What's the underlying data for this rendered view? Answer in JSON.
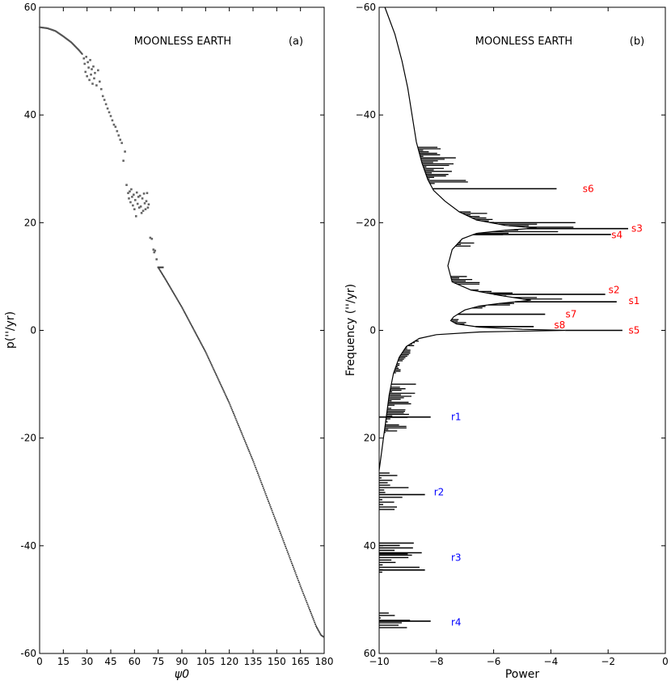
{
  "chart_data": [
    {
      "type": "scatter",
      "panel": "(a)",
      "title": "MOONLESS EARTH",
      "xlabel": "ψ0",
      "ylabel": "p(''/yr)",
      "xlim": [
        0,
        180
      ],
      "ylim": [
        -60,
        60
      ],
      "xticks": [
        0,
        15,
        30,
        45,
        60,
        75,
        90,
        105,
        120,
        135,
        150,
        165,
        180
      ],
      "yticks": [
        -60,
        -40,
        -20,
        0,
        20,
        40,
        60
      ],
      "regular_curve": [
        [
          0,
          56.3
        ],
        [
          5,
          56.1
        ],
        [
          10,
          55.6
        ],
        [
          15,
          54.6
        ],
        [
          20,
          53.5
        ],
        [
          25,
          52.0
        ],
        [
          27,
          51.3
        ],
        [
          75,
          11.7
        ],
        [
          80,
          9.3
        ],
        [
          90,
          4.3
        ],
        [
          105,
          -4.0
        ],
        [
          120,
          -13.5
        ],
        [
          135,
          -24.2
        ],
        [
          150,
          -35.8
        ],
        [
          165,
          -47.5
        ],
        [
          175,
          -55.0
        ],
        [
          178,
          -56.6
        ],
        [
          180,
          -57.0
        ]
      ],
      "chaotic_points": [
        [
          28,
          50.5
        ],
        [
          28.5,
          49.5
        ],
        [
          29,
          48.0
        ],
        [
          29.5,
          50.8
        ],
        [
          30,
          47.2
        ],
        [
          30.5,
          49.8
        ],
        [
          31,
          48.8
        ],
        [
          31.5,
          46.5
        ],
        [
          32,
          50.2
        ],
        [
          32.5,
          47.5
        ],
        [
          33,
          48.5
        ],
        [
          33.5,
          45.8
        ],
        [
          34,
          49.0
        ],
        [
          34.5,
          46.8
        ],
        [
          35,
          47.8
        ],
        [
          36,
          45.5
        ],
        [
          37,
          48.3
        ],
        [
          38,
          46.2
        ],
        [
          39,
          44.8
        ],
        [
          40,
          43.5
        ],
        [
          41,
          42.8
        ],
        [
          42,
          42.0
        ],
        [
          43,
          41.2
        ],
        [
          44,
          40.5
        ],
        [
          45,
          39.8
        ],
        [
          46,
          39.0
        ],
        [
          47,
          38.2
        ],
        [
          48,
          37.8
        ],
        [
          49,
          37.0
        ],
        [
          50,
          36.2
        ],
        [
          51,
          35.4
        ],
        [
          52,
          34.8
        ],
        [
          53,
          31.5
        ],
        [
          54,
          33.2
        ],
        [
          55,
          27.0
        ],
        [
          56,
          25.5
        ],
        [
          56.5,
          24.5
        ],
        [
          57,
          25.8
        ],
        [
          57.5,
          23.8
        ],
        [
          58,
          26.2
        ],
        [
          58.5,
          24.8
        ],
        [
          59,
          23.2
        ],
        [
          59.5,
          25.2
        ],
        [
          60,
          22.5
        ],
        [
          60.5,
          24.2
        ],
        [
          61,
          21.2
        ],
        [
          61.5,
          25.6
        ],
        [
          62,
          23.5
        ],
        [
          62.5,
          24.8
        ],
        [
          63,
          22.8
        ],
        [
          63.5,
          25.0
        ],
        [
          64,
          23.0
        ],
        [
          64.5,
          21.8
        ],
        [
          65,
          24.5
        ],
        [
          65.5,
          22.2
        ],
        [
          66,
          25.4
        ],
        [
          66.5,
          23.6
        ],
        [
          67,
          22.5
        ],
        [
          67.5,
          24.0
        ],
        [
          68,
          25.5
        ],
        [
          68.5,
          22.8
        ],
        [
          69,
          23.4
        ],
        [
          70,
          17.2
        ],
        [
          71,
          17.0
        ],
        [
          72,
          15.0
        ],
        [
          72.5,
          14.5
        ],
        [
          73,
          14.8
        ],
        [
          74,
          13.2
        ]
      ]
    },
    {
      "type": "line",
      "panel": "(b)",
      "title": "MOONLESS EARTH",
      "xlabel": "Power",
      "ylabel": "Frequency (''/yr)",
      "xlim": [
        -10,
        0
      ],
      "ylim": [
        60,
        -60
      ],
      "xticks": [
        -10,
        -8,
        -6,
        -4,
        -2,
        0
      ],
      "yticks": [
        -60,
        -40,
        -20,
        0,
        20,
        40,
        60
      ],
      "envelope": [
        [
          -60,
          -9.8
        ],
        [
          -55,
          -9.45
        ],
        [
          -50,
          -9.2
        ],
        [
          -45,
          -9.0
        ],
        [
          -40,
          -8.85
        ],
        [
          -35,
          -8.7
        ],
        [
          -31,
          -8.5
        ],
        [
          -28,
          -8.3
        ],
        [
          -26,
          -8.1
        ],
        [
          -24,
          -7.7
        ],
        [
          -22,
          -7.2
        ],
        [
          -20.5,
          -6.6
        ],
        [
          -19.5,
          -5.6
        ],
        [
          -19.0,
          -4.5
        ],
        [
          -18.6,
          -5.6
        ],
        [
          -18.0,
          -6.6
        ],
        [
          -17.0,
          -7.1
        ],
        [
          -15.0,
          -7.45
        ],
        [
          -12.0,
          -7.6
        ],
        [
          -9.0,
          -7.45
        ],
        [
          -7.5,
          -6.8
        ],
        [
          -6.5,
          -5.8
        ],
        [
          -5.6,
          -4.7
        ],
        [
          -5.0,
          -5.8
        ],
        [
          -4.5,
          -6.5
        ],
        [
          -3.8,
          -7.0
        ],
        [
          -3.0,
          -7.25
        ],
        [
          -2.5,
          -7.4
        ],
        [
          -1.8,
          -7.5
        ],
        [
          -1.2,
          -7.3
        ],
        [
          -0.6,
          -6.5
        ],
        [
          -0.2,
          -5.0
        ],
        [
          0.0,
          -3.5
        ],
        [
          0.3,
          -6.5
        ],
        [
          0.8,
          -8.0
        ],
        [
          1.5,
          -8.6
        ],
        [
          3.0,
          -9.05
        ],
        [
          5.0,
          -9.3
        ],
        [
          8.0,
          -9.5
        ],
        [
          12.0,
          -9.65
        ],
        [
          16.0,
          -9.75
        ],
        [
          20.0,
          -9.85
        ],
        [
          24.0,
          -9.95
        ],
        [
          26.0,
          -10.0
        ]
      ],
      "peaks": [
        {
          "freq": -26.3,
          "power": -3.8
        },
        {
          "freq": -18.9,
          "power": -1.3
        },
        {
          "freq": -17.8,
          "power": -1.9
        },
        {
          "freq": -6.7,
          "power": -2.1
        },
        {
          "freq": -5.3,
          "power": -1.7
        },
        {
          "freq": -3.0,
          "power": -4.2
        },
        {
          "freq": -0.7,
          "power": -4.6
        },
        {
          "freq": 0.0,
          "power": -1.5
        },
        {
          "freq": 16.1,
          "power": -8.2
        },
        {
          "freq": 30.5,
          "power": -8.4
        },
        {
          "freq": 41.5,
          "power": -9.0
        },
        {
          "freq": 44.5,
          "power": -8.4
        },
        {
          "freq": 54.0,
          "power": -8.2
        }
      ],
      "annotations": [
        {
          "label": "s6",
          "freq": -26.3,
          "power": -3.0,
          "color": "#ff0000"
        },
        {
          "label": "s3",
          "freq": -18.9,
          "power": -1.3,
          "color": "#ff0000"
        },
        {
          "label": "s4",
          "freq": -17.7,
          "power": -2.0,
          "color": "#ff0000"
        },
        {
          "label": "s2",
          "freq": -7.5,
          "power": -2.1,
          "color": "#ff0000"
        },
        {
          "label": "s1",
          "freq": -5.5,
          "power": -1.4,
          "color": "#ff0000"
        },
        {
          "label": "s7",
          "freq": -3.0,
          "power": -3.6,
          "color": "#ff0000"
        },
        {
          "label": "s8",
          "freq": -1.0,
          "power": -4.0,
          "color": "#ff0000"
        },
        {
          "label": "s5",
          "freq": 0.0,
          "power": -1.4,
          "color": "#ff0000"
        },
        {
          "label": "r1",
          "freq": 16.1,
          "power": -7.6,
          "color": "#0000ff"
        },
        {
          "label": "r2",
          "freq": 30.0,
          "power": -8.2,
          "color": "#0000ff"
        },
        {
          "label": "r3",
          "freq": 42.2,
          "power": -7.6,
          "color": "#0000ff"
        },
        {
          "label": "r4",
          "freq": 54.2,
          "power": -7.6,
          "color": "#0000ff"
        }
      ]
    }
  ]
}
